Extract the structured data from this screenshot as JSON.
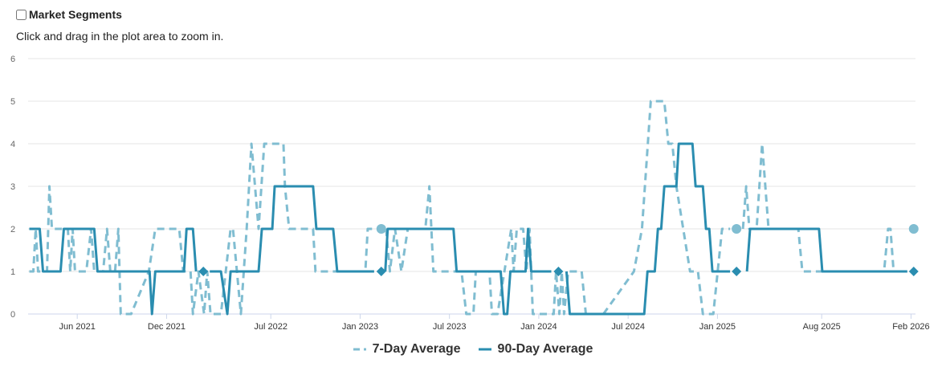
{
  "header": {
    "title": "Market Segments",
    "subtitle": "Click and drag in the plot area to zoom in."
  },
  "colors": {
    "ninety": "#2a8db0",
    "seven": "#80bdd1",
    "grid": "#e6e6e6",
    "axis": "#ccd6eb",
    "label": "#666666"
  },
  "chart_data": {
    "type": "line",
    "title": "Market Segments",
    "x_unit": "months since 2021-01-01",
    "xlim": [
      1.7,
      61.3
    ],
    "ylim": [
      0,
      6
    ],
    "yticks": [
      0,
      1,
      2,
      3,
      4,
      5,
      6
    ],
    "xticks": [
      {
        "x": 5,
        "label": "Jun 2021"
      },
      {
        "x": 11,
        "label": "Dec 2021"
      },
      {
        "x": 18,
        "label": "Jul 2022"
      },
      {
        "x": 24,
        "label": "Jan 2023"
      },
      {
        "x": 30,
        "label": "Jul 2023"
      },
      {
        "x": 36,
        "label": "Jan 2024"
      },
      {
        "x": 42,
        "label": "Jul 2024"
      },
      {
        "x": 48,
        "label": "Jan 2025"
      },
      {
        "x": 55,
        "label": "Aug 2025"
      },
      {
        "x": 61,
        "label": "Feb 2026"
      }
    ],
    "grid": true,
    "legend": "bottom-center",
    "series": [
      {
        "name": "7-Day Average",
        "style": "dashed",
        "marker": "circle",
        "color_key": "seven",
        "points": [
          [
            1.78,
            1
          ],
          [
            2.05,
            1
          ],
          [
            2.21,
            2
          ],
          [
            2.37,
            1
          ],
          [
            2.97,
            1
          ],
          [
            3.13,
            3
          ],
          [
            3.3,
            2
          ],
          [
            4.1,
            2
          ],
          [
            4.37,
            2
          ],
          [
            4.53,
            1
          ],
          [
            4.69,
            2
          ],
          [
            4.85,
            1
          ],
          [
            5.61,
            1
          ],
          [
            5.93,
            2
          ],
          [
            6.14,
            1
          ],
          [
            6.74,
            1
          ],
          [
            7.0,
            2
          ],
          [
            7.22,
            1
          ],
          [
            7.54,
            1
          ],
          [
            7.76,
            2
          ],
          [
            7.92,
            0
          ],
          [
            8.62,
            0
          ],
          [
            9.81,
            1
          ],
          [
            10.24,
            2
          ],
          [
            11.85,
            2
          ],
          [
            12.12,
            1
          ],
          [
            12.61,
            1
          ],
          [
            12.77,
            0
          ],
          [
            13.14,
            1
          ],
          [
            13.52,
            0
          ],
          [
            13.73,
            1
          ],
          [
            13.95,
            0
          ],
          [
            14.65,
            0
          ],
          [
            15.3,
            2
          ],
          [
            15.46,
            2
          ],
          [
            15.99,
            0
          ],
          [
            16.38,
            2
          ],
          [
            16.7,
            4
          ],
          [
            17.18,
            2
          ],
          [
            17.56,
            4
          ],
          [
            18.85,
            4
          ],
          [
            18.95,
            3
          ],
          [
            19.23,
            2
          ],
          [
            20.84,
            2
          ],
          [
            21.0,
            1
          ],
          [
            24.35,
            1
          ],
          [
            24.51,
            2
          ],
          [
            25.05,
            2
          ],
          null,
          [
            25.42,
            2
          ],
          null,
          [
            25.74,
            2
          ],
          [
            26.0,
            1
          ],
          [
            26.34,
            2
          ],
          [
            26.77,
            1
          ],
          [
            27.2,
            2
          ],
          [
            28.38,
            2
          ],
          [
            28.65,
            3
          ],
          [
            28.92,
            1
          ],
          [
            30.81,
            1
          ],
          [
            31.13,
            0
          ],
          [
            31.61,
            0
          ],
          [
            31.77,
            1
          ],
          [
            32.69,
            1
          ],
          [
            32.85,
            0
          ],
          [
            33.23,
            0
          ],
          [
            34.15,
            2
          ],
          [
            34.31,
            1
          ],
          [
            34.52,
            2
          ],
          [
            34.95,
            2
          ],
          [
            35.17,
            1
          ],
          [
            35.38,
            2
          ],
          [
            35.6,
            0
          ],
          [
            37.0,
            0
          ],
          [
            37.16,
            1
          ],
          [
            37.38,
            0
          ],
          [
            37.54,
            1
          ],
          [
            37.7,
            0
          ],
          [
            37.97,
            1
          ],
          [
            38.88,
            1
          ],
          [
            39.16,
            0
          ],
          [
            40.34,
            0
          ],
          [
            42.39,
            1
          ],
          [
            42.93,
            2
          ],
          [
            43.52,
            5
          ],
          [
            44.43,
            5
          ],
          [
            44.7,
            4
          ],
          [
            44.97,
            4
          ],
          [
            45.24,
            3
          ],
          [
            46.16,
            1
          ],
          [
            46.69,
            1
          ],
          [
            47.02,
            0
          ],
          [
            47.72,
            0
          ],
          [
            48.31,
            2
          ],
          [
            48.85,
            2
          ],
          null,
          [
            49.28,
            2
          ],
          null,
          [
            49.71,
            2
          ],
          [
            49.93,
            3
          ],
          [
            50.14,
            2
          ],
          [
            50.63,
            2
          ],
          [
            51.0,
            4
          ],
          [
            51.43,
            2
          ],
          [
            53.43,
            2
          ],
          [
            53.7,
            1
          ],
          [
            59.19,
            1
          ],
          [
            59.46,
            2
          ],
          [
            59.62,
            2
          ],
          [
            59.83,
            1
          ],
          [
            60.7,
            1
          ],
          null,
          [
            61.18,
            2
          ]
        ]
      },
      {
        "name": "90-Day Average",
        "style": "solid",
        "marker": "diamond",
        "color_key": "ninety",
        "points": [
          [
            1.78,
            2
          ],
          [
            2.48,
            2
          ],
          [
            2.7,
            1
          ],
          [
            3.88,
            1
          ],
          [
            4.1,
            2
          ],
          [
            6.14,
            2
          ],
          [
            6.36,
            1
          ],
          [
            9.86,
            1
          ],
          [
            10.02,
            0
          ],
          [
            10.24,
            1
          ],
          [
            12.17,
            1
          ],
          [
            12.34,
            2
          ],
          [
            12.77,
            2
          ],
          [
            12.98,
            1
          ],
          null,
          [
            13.47,
            1
          ],
          null,
          [
            13.9,
            1
          ],
          [
            14.65,
            1
          ],
          [
            15.08,
            0
          ],
          [
            15.3,
            1
          ],
          [
            17.18,
            1
          ],
          [
            17.4,
            2
          ],
          [
            18.1,
            2
          ],
          [
            18.26,
            3
          ],
          [
            20.84,
            3
          ],
          [
            21.06,
            2
          ],
          [
            22.19,
            2
          ],
          [
            22.46,
            1
          ],
          [
            24.94,
            1
          ],
          null,
          [
            25.42,
            1
          ],
          null,
          [
            25.69,
            1
          ],
          [
            25.85,
            2
          ],
          [
            30.27,
            2
          ],
          [
            30.48,
            1
          ],
          [
            33.44,
            1
          ],
          [
            33.66,
            0
          ],
          [
            33.88,
            0
          ],
          [
            34.09,
            1
          ],
          [
            35.11,
            1
          ],
          [
            35.28,
            2
          ],
          [
            35.49,
            1
          ],
          [
            36.84,
            1
          ],
          null,
          [
            37.32,
            1
          ],
          null,
          [
            37.86,
            1
          ],
          [
            38.08,
            0
          ],
          [
            43.08,
            0
          ],
          [
            43.3,
            1
          ],
          [
            43.79,
            1
          ],
          [
            44.0,
            2
          ],
          [
            44.22,
            2
          ],
          [
            44.43,
            3
          ],
          [
            45.24,
            3
          ],
          [
            45.4,
            4
          ],
          [
            46.32,
            4
          ],
          [
            46.53,
            3
          ],
          [
            47.02,
            3
          ],
          [
            47.23,
            2
          ],
          [
            47.45,
            2
          ],
          [
            47.66,
            1
          ],
          [
            48.85,
            1
          ],
          null,
          [
            49.28,
            1
          ],
          null,
          [
            49.98,
            1
          ],
          [
            50.19,
            2
          ],
          [
            54.82,
            2
          ],
          [
            55.04,
            1
          ],
          [
            60.75,
            1
          ],
          null,
          [
            61.18,
            1
          ]
        ]
      }
    ]
  }
}
